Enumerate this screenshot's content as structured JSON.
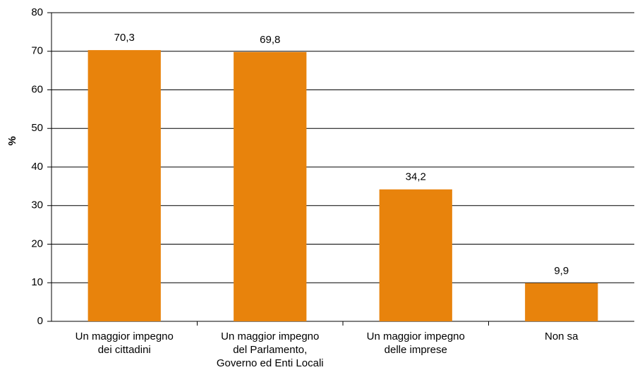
{
  "chart_data": {
    "type": "bar",
    "y_label": "%",
    "categories": [
      "Un maggior impegno\ndei cittadini",
      "Un maggior impegno\ndel Parlamento,\nGoverno ed Enti Locali",
      "Un maggior impegno\ndelle imprese",
      "Non sa"
    ],
    "values": [
      70.3,
      69.8,
      34.2,
      9.9
    ],
    "value_labels": [
      "70,3",
      "69,8",
      "34,2",
      "9,9"
    ],
    "color": "#e8830c",
    "ylim": [
      0,
      80
    ],
    "yticks": [
      0,
      10,
      20,
      30,
      40,
      50,
      60,
      70,
      80
    ],
    "grid": true
  }
}
